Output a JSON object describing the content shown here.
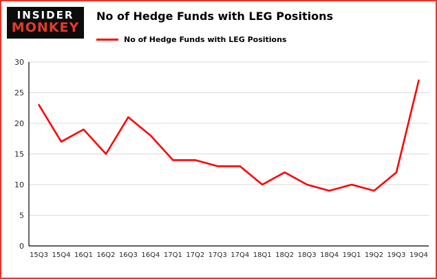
{
  "meta": {
    "frame_border_color": "#ee3424",
    "background_color": "#ffffff"
  },
  "header": {
    "logo_line1": "INSIDER",
    "logo_line2": "MONKEY",
    "title": "No of Hedge Funds with LEG Positions"
  },
  "legend": {
    "label": "No of Hedge Funds with LEG Positions",
    "color": "#ff0000"
  },
  "chart_data": {
    "type": "line",
    "title": "No of Hedge Funds with LEG Positions",
    "xlabel": "",
    "ylabel": "",
    "categories": [
      "15Q3",
      "15Q4",
      "16Q1",
      "16Q2",
      "16Q3",
      "16Q4",
      "17Q1",
      "17Q2",
      "17Q3",
      "17Q4",
      "18Q1",
      "18Q2",
      "18Q3",
      "18Q4",
      "19Q1",
      "19Q2",
      "19Q3",
      "19Q4"
    ],
    "series": [
      {
        "name": "No of Hedge Funds with LEG Positions",
        "color": "#ff0000",
        "values": [
          23,
          17,
          19,
          15,
          21,
          18,
          14,
          14,
          13,
          13,
          10,
          12,
          10,
          9,
          10,
          9,
          12,
          27
        ]
      }
    ],
    "ylim": [
      0,
      30
    ],
    "yticks": [
      0,
      5,
      10,
      15,
      20,
      25,
      30
    ],
    "grid": true,
    "gridline_color": "#d9d9d9",
    "axis_color": "#000000",
    "tick_label_color": "#262626",
    "legend_position": "top-left"
  }
}
